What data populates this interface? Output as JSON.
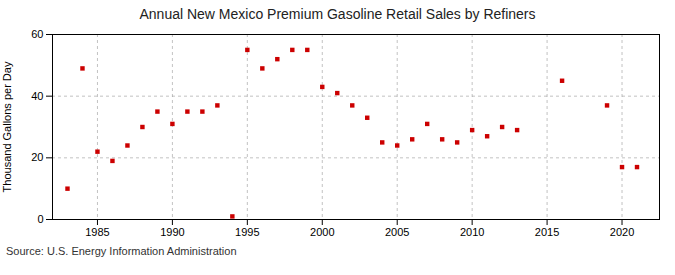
{
  "chart_data": {
    "type": "scatter",
    "title": "Annual New Mexico Premium Gasoline Retail Sales by Refiners",
    "ylabel": "Thousand Gallons per Day",
    "source": "Source: U.S. Energy Information Administration",
    "x": [
      1983,
      1984,
      1985,
      1986,
      1987,
      1988,
      1989,
      1990,
      1991,
      1992,
      1993,
      1994,
      1995,
      1996,
      1997,
      1998,
      1999,
      2000,
      2001,
      2002,
      2003,
      2004,
      2005,
      2006,
      2007,
      2008,
      2009,
      2010,
      2011,
      2012,
      2013,
      2016,
      2019,
      2020,
      2021
    ],
    "values": [
      10,
      49,
      22,
      19,
      24,
      30,
      35,
      31,
      35,
      35,
      37,
      1,
      55,
      49,
      52,
      55,
      55,
      43,
      41,
      37,
      33,
      25,
      24,
      26,
      31,
      26,
      25,
      29,
      27,
      30,
      29,
      45,
      37,
      17,
      17
    ],
    "color": "#cc0000",
    "marker": "square",
    "xlim": [
      1982.0,
      2022.5
    ],
    "xticks": [
      1985,
      1990,
      1995,
      2000,
      2005,
      2010,
      2015,
      2020
    ],
    "ylim": [
      0,
      60
    ],
    "yticks": [
      0,
      20,
      40,
      60
    ],
    "grid": true
  }
}
